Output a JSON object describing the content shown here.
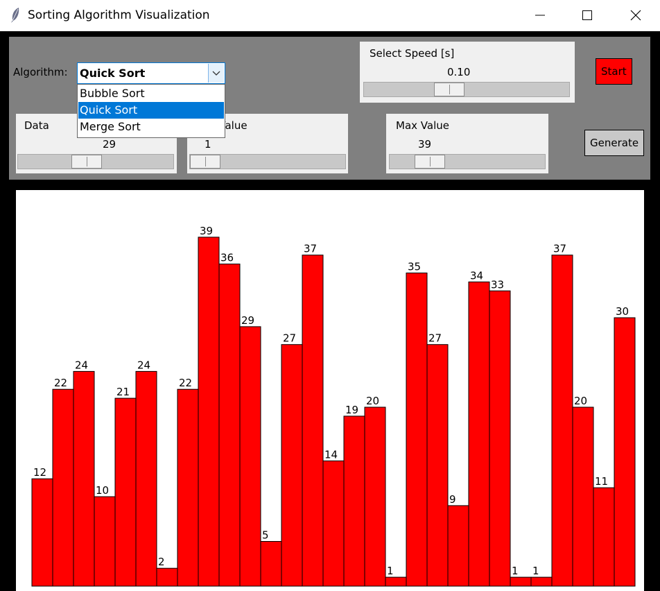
{
  "window": {
    "title": "Sorting Algorithm Visualization"
  },
  "controls": {
    "algorithm_label": "Algorithm:",
    "algorithm_selected": "Quick Sort",
    "algorithm_options": [
      "Bubble Sort",
      "Quick Sort",
      "Merge Sort"
    ],
    "speed": {
      "label": "Select Speed [s]",
      "value": "0.10",
      "fraction": 0.4
    },
    "data_size": {
      "label": "Data",
      "value": "29",
      "fraction": 0.43
    },
    "min_value": {
      "label": "Min Value",
      "value": "1",
      "fraction": 0.0
    },
    "max_value": {
      "label": "Max Value",
      "value": "39",
      "fraction": 0.2
    },
    "start_label": "Start",
    "generate_label": "Generate"
  },
  "chart_data": {
    "type": "bar",
    "values": [
      12,
      22,
      24,
      10,
      21,
      24,
      2,
      22,
      39,
      36,
      29,
      5,
      27,
      37,
      14,
      19,
      20,
      1,
      35,
      27,
      9,
      34,
      33,
      1,
      1,
      37,
      20,
      11,
      30
    ],
    "bar_color": "#ff0000"
  }
}
